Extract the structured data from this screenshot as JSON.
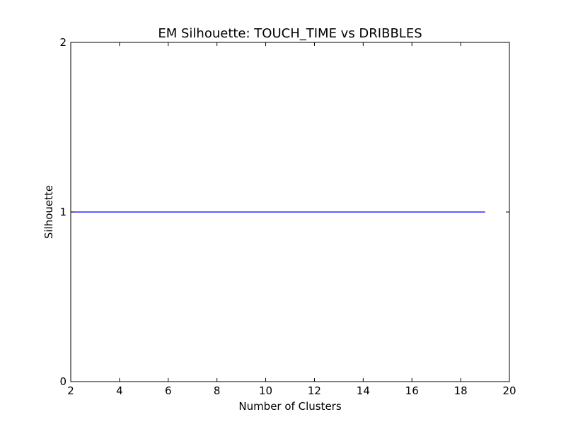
{
  "chart_data": {
    "type": "line",
    "title": "EM Silhouette: TOUCH_TIME vs DRIBBLES",
    "xlabel": "Number of Clusters",
    "ylabel": "Silhouette",
    "xlim": [
      2,
      20
    ],
    "ylim": [
      0,
      2
    ],
    "xticks": [
      2,
      4,
      6,
      8,
      10,
      12,
      14,
      16,
      18,
      20
    ],
    "yticks": [
      0,
      1,
      2
    ],
    "grid": false,
    "series": [
      {
        "color": "#0000ff",
        "x": [
          2,
          3,
          4,
          5,
          6,
          7,
          8,
          9,
          10,
          11,
          12,
          13,
          14,
          15,
          16,
          17,
          18,
          19
        ],
        "y": [
          1,
          1,
          1,
          1,
          1,
          1,
          1,
          1,
          1,
          1,
          1,
          1,
          1,
          1,
          1,
          1,
          1,
          1
        ]
      }
    ]
  }
}
